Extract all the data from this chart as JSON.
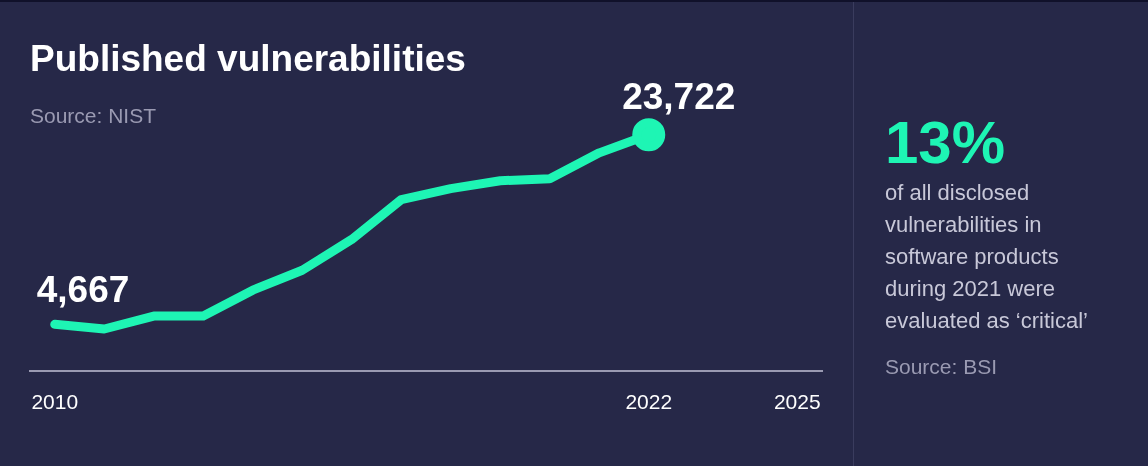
{
  "chart_data": [
    {
      "type": "line",
      "title": "Published vulnerabilities",
      "subtitle": "Source: NIST",
      "x": [
        2010,
        2011,
        2012,
        2013,
        2014,
        2015,
        2016,
        2017,
        2018,
        2019,
        2020,
        2021,
        2022
      ],
      "series": [
        {
          "color": "#1ef5b4",
          "values": [
            4667,
            4200,
            5500,
            5500,
            8100,
            10100,
            13200,
            17200,
            18300,
            19100,
            19300,
            21900,
            23722
          ],
          "value_labels": [
            "4,667",
            null,
            null,
            null,
            null,
            null,
            null,
            null,
            null,
            null,
            null,
            null,
            "23,722"
          ]
        }
      ],
      "xlim": [
        2009.5,
        2025.5
      ],
      "xticks": [
        2010,
        2022,
        2025
      ],
      "tick_labels": "x",
      "grid": false,
      "legend": false
    },
    {
      "type": "other",
      "title": "13%",
      "subtitle": "of all disclosed vulnerabilities in software products during 2021 were evaluated as ‘critical’",
      "annotations": [
        "Source: BSI"
      ]
    }
  ]
}
